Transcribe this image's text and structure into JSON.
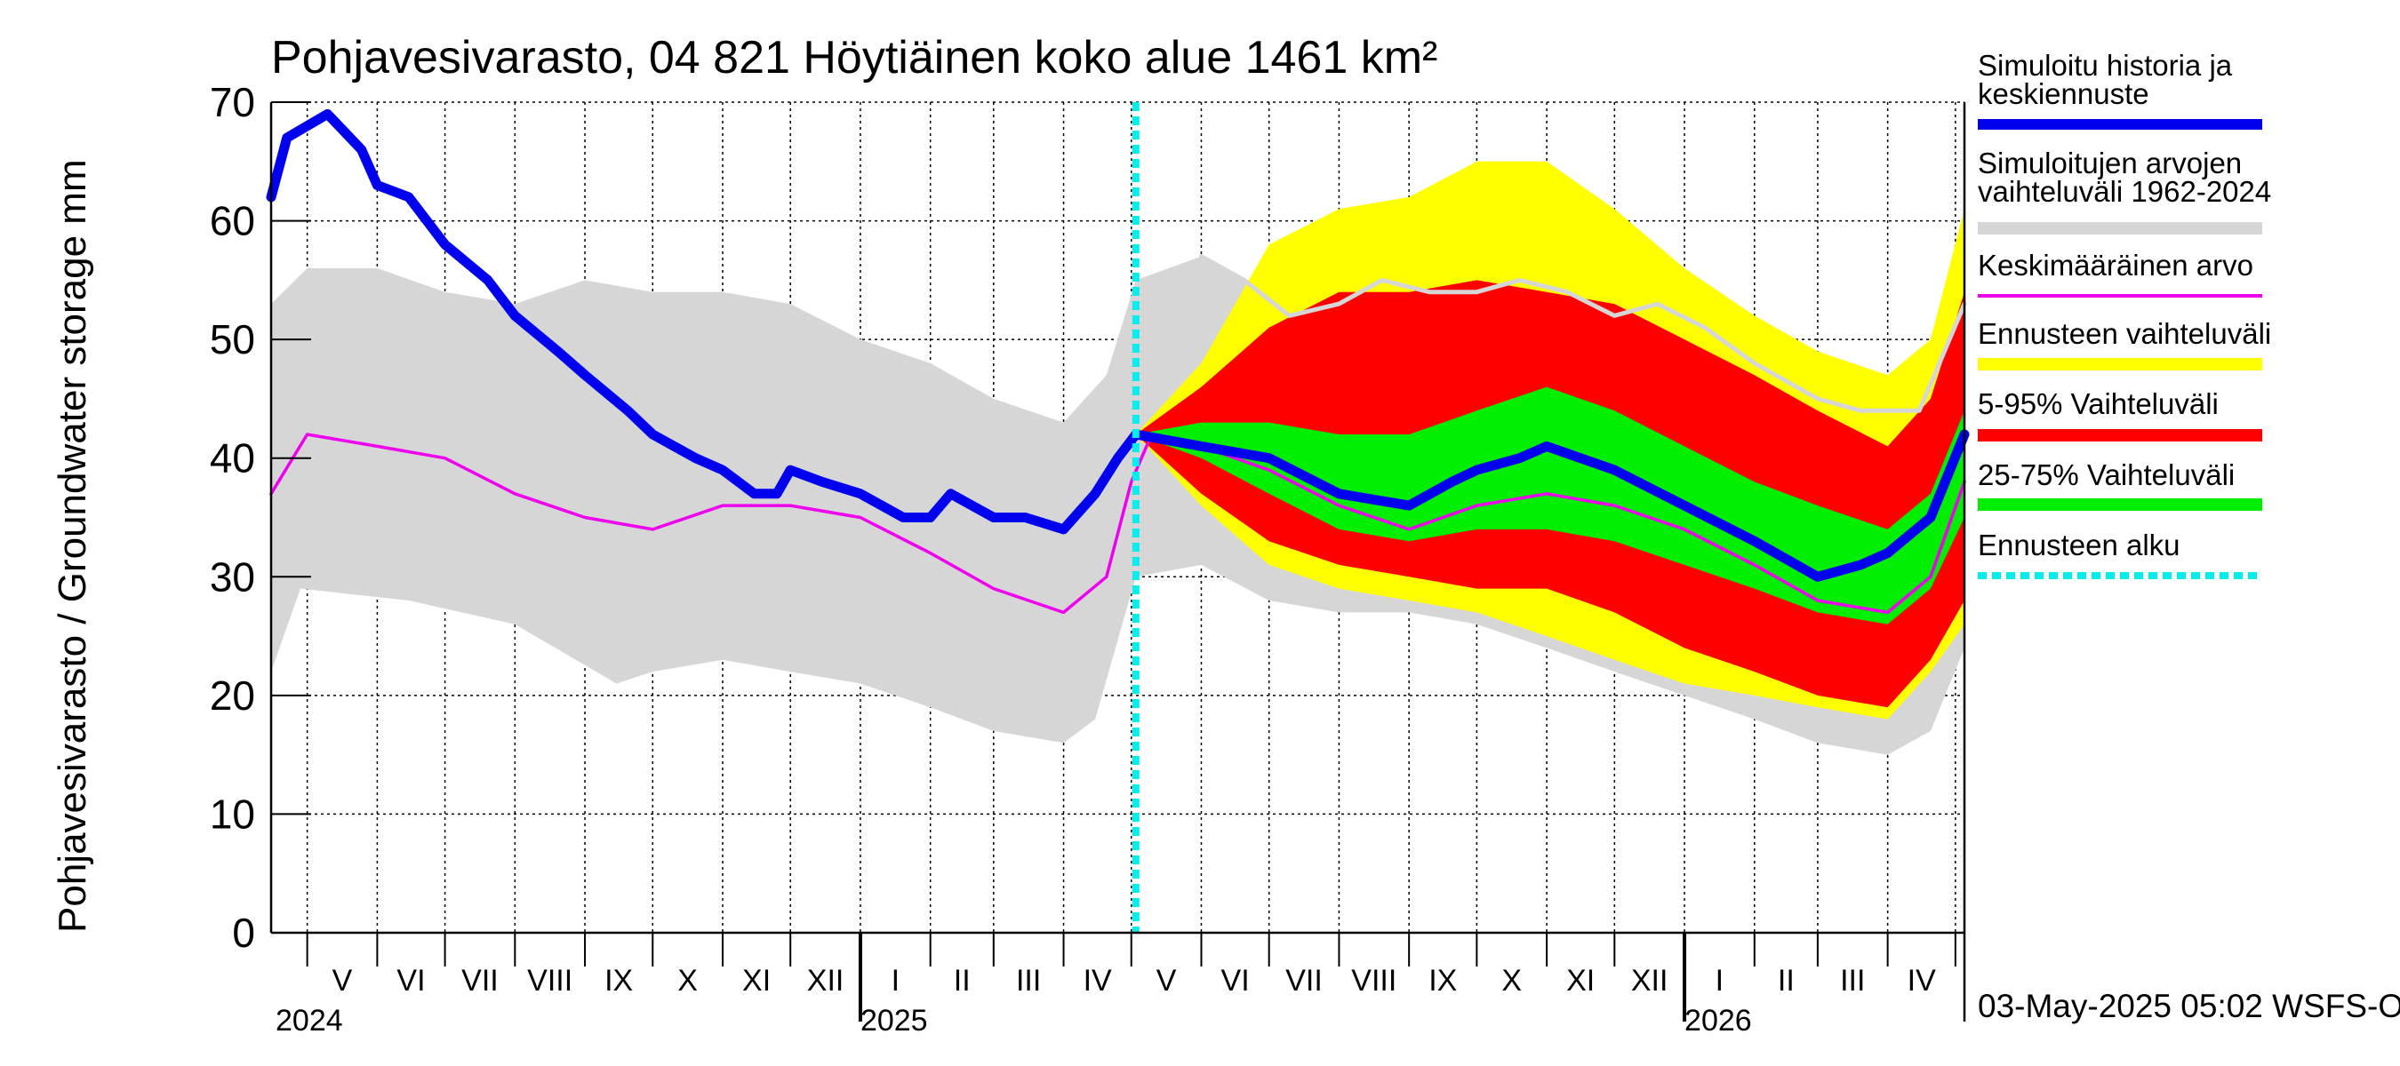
{
  "chart_data": {
    "type": "area",
    "title": "Pohjavesivarasto, 04 821 Höytiäinen koko alue 1461 km²",
    "ylabel": "Pohjavesivarasto / Groundwater storage   mm",
    "ylim": [
      0,
      70
    ],
    "yticks": [
      0,
      10,
      20,
      30,
      40,
      50,
      60,
      70
    ],
    "grid": true,
    "x_start": "2024-04-15",
    "x_end": "2026-05-05",
    "forecast_start": "2025-05-03",
    "months": [
      {
        "label": "V",
        "date": "2024-05-01"
      },
      {
        "label": "VI",
        "date": "2024-06-01"
      },
      {
        "label": "VII",
        "date": "2024-07-01"
      },
      {
        "label": "VIII",
        "date": "2024-08-01"
      },
      {
        "label": "IX",
        "date": "2024-09-01"
      },
      {
        "label": "X",
        "date": "2024-10-01"
      },
      {
        "label": "XI",
        "date": "2024-11-01"
      },
      {
        "label": "XII",
        "date": "2024-12-01"
      },
      {
        "label": "I",
        "date": "2025-01-01"
      },
      {
        "label": "II",
        "date": "2025-02-01"
      },
      {
        "label": "III",
        "date": "2025-03-01"
      },
      {
        "label": "IV",
        "date": "2025-04-01"
      },
      {
        "label": "V",
        "date": "2025-05-01"
      },
      {
        "label": "VI",
        "date": "2025-06-01"
      },
      {
        "label": "VII",
        "date": "2025-07-01"
      },
      {
        "label": "VIII",
        "date": "2025-08-01"
      },
      {
        "label": "IX",
        "date": "2025-09-01"
      },
      {
        "label": "X",
        "date": "2025-10-01"
      },
      {
        "label": "XI",
        "date": "2025-11-01"
      },
      {
        "label": "XII",
        "date": "2025-12-01"
      },
      {
        "label": "I",
        "date": "2026-01-01"
      },
      {
        "label": "II",
        "date": "2026-02-01"
      },
      {
        "label": "III",
        "date": "2026-03-01"
      },
      {
        "label": "IV",
        "date": "2026-04-01"
      },
      {
        "label": "",
        "date": "2026-05-01"
      }
    ],
    "years": [
      {
        "label": "2024",
        "date": "2024-04-15"
      },
      {
        "label": "2025",
        "date": "2025-01-01"
      },
      {
        "label": "2026",
        "date": "2026-01-01"
      }
    ],
    "colors": {
      "history": "#0000ee",
      "range": "#d6d6d6",
      "mean": "#ee00ee",
      "forecast_range": "#ffff00",
      "p5_95": "#ff0000",
      "p25_75": "#00ee00",
      "forecast_start": "#00eeee",
      "range_max_line": "#d6d6d6"
    },
    "series": [
      {
        "key": "range",
        "name": "Simuloitujen arvojen vaihteluväli 1962-2024",
        "kind": "band",
        "lower": [
          [
            "2024-04-15",
            22
          ],
          [
            "2024-04-28",
            29
          ],
          [
            "2024-06-15",
            28
          ],
          [
            "2024-08-01",
            26
          ],
          [
            "2024-09-15",
            21
          ],
          [
            "2024-10-01",
            22
          ],
          [
            "2024-11-01",
            23
          ],
          [
            "2024-12-01",
            22
          ],
          [
            "2025-01-01",
            21
          ],
          [
            "2025-02-01",
            19
          ],
          [
            "2025-03-01",
            17
          ],
          [
            "2025-04-01",
            16
          ],
          [
            "2025-04-15",
            18
          ],
          [
            "2025-05-03",
            30
          ],
          [
            "2025-06-01",
            31
          ],
          [
            "2025-07-01",
            28
          ],
          [
            "2025-08-01",
            27
          ],
          [
            "2025-09-01",
            27
          ],
          [
            "2025-10-01",
            26
          ],
          [
            "2025-11-01",
            24
          ],
          [
            "2025-12-01",
            22
          ],
          [
            "2026-01-01",
            20
          ],
          [
            "2026-02-01",
            18
          ],
          [
            "2026-03-01",
            16
          ],
          [
            "2026-04-01",
            15
          ],
          [
            "2026-04-20",
            17
          ],
          [
            "2026-05-05",
            24
          ]
        ],
        "upper": [
          [
            "2024-04-15",
            53
          ],
          [
            "2024-05-01",
            56
          ],
          [
            "2024-06-01",
            56
          ],
          [
            "2024-07-01",
            54
          ],
          [
            "2024-08-01",
            53
          ],
          [
            "2024-09-01",
            55
          ],
          [
            "2024-10-01",
            54
          ],
          [
            "2024-11-01",
            54
          ],
          [
            "2024-12-01",
            53
          ],
          [
            "2025-01-01",
            50
          ],
          [
            "2025-02-01",
            48
          ],
          [
            "2025-03-01",
            45
          ],
          [
            "2025-04-01",
            43
          ],
          [
            "2025-04-20",
            47
          ],
          [
            "2025-05-03",
            55
          ],
          [
            "2025-06-01",
            57
          ],
          [
            "2025-07-01",
            54
          ],
          [
            "2025-08-01",
            53
          ],
          [
            "2025-09-01",
            54
          ],
          [
            "2025-10-01",
            54
          ],
          [
            "2025-11-01",
            55
          ],
          [
            "2025-12-01",
            54
          ],
          [
            "2026-01-01",
            53
          ],
          [
            "2026-02-01",
            50
          ],
          [
            "2026-03-01",
            46
          ],
          [
            "2026-04-01",
            44
          ],
          [
            "2026-04-20",
            45
          ],
          [
            "2026-05-05",
            53
          ]
        ]
      },
      {
        "key": "forecast_range",
        "name": "Ennusteen vaihteluväli",
        "kind": "band",
        "lower": [
          [
            "2025-05-03",
            42
          ],
          [
            "2025-06-01",
            36
          ],
          [
            "2025-07-01",
            31
          ],
          [
            "2025-08-01",
            29
          ],
          [
            "2025-09-01",
            28
          ],
          [
            "2025-10-01",
            27
          ],
          [
            "2025-11-01",
            25
          ],
          [
            "2025-12-01",
            23
          ],
          [
            "2026-01-01",
            21
          ],
          [
            "2026-02-01",
            20
          ],
          [
            "2026-03-01",
            19
          ],
          [
            "2026-04-01",
            18
          ],
          [
            "2026-04-20",
            22
          ],
          [
            "2026-05-05",
            26
          ]
        ],
        "upper": [
          [
            "2025-05-03",
            42
          ],
          [
            "2025-06-01",
            48
          ],
          [
            "2025-07-01",
            58
          ],
          [
            "2025-08-01",
            61
          ],
          [
            "2025-09-01",
            62
          ],
          [
            "2025-10-01",
            65
          ],
          [
            "2025-11-01",
            65
          ],
          [
            "2025-12-01",
            61
          ],
          [
            "2026-01-01",
            56
          ],
          [
            "2026-02-01",
            52
          ],
          [
            "2026-03-01",
            49
          ],
          [
            "2026-04-01",
            47
          ],
          [
            "2026-04-20",
            50
          ],
          [
            "2026-05-05",
            61
          ]
        ]
      },
      {
        "key": "p5_95",
        "name": "5-95% Vaihteluväli",
        "kind": "band",
        "lower": [
          [
            "2025-05-03",
            42
          ],
          [
            "2025-06-01",
            37
          ],
          [
            "2025-07-01",
            33
          ],
          [
            "2025-08-01",
            31
          ],
          [
            "2025-09-01",
            30
          ],
          [
            "2025-10-01",
            29
          ],
          [
            "2025-11-01",
            29
          ],
          [
            "2025-12-01",
            27
          ],
          [
            "2026-01-01",
            24
          ],
          [
            "2026-02-01",
            22
          ],
          [
            "2026-03-01",
            20
          ],
          [
            "2026-04-01",
            19
          ],
          [
            "2026-04-20",
            23
          ],
          [
            "2026-05-05",
            28
          ]
        ],
        "upper": [
          [
            "2025-05-03",
            42
          ],
          [
            "2025-06-01",
            46
          ],
          [
            "2025-07-01",
            51
          ],
          [
            "2025-08-01",
            54
          ],
          [
            "2025-09-01",
            54
          ],
          [
            "2025-10-01",
            55
          ],
          [
            "2025-11-01",
            54
          ],
          [
            "2025-12-01",
            53
          ],
          [
            "2026-01-01",
            50
          ],
          [
            "2026-02-01",
            47
          ],
          [
            "2026-03-01",
            44
          ],
          [
            "2026-04-01",
            41
          ],
          [
            "2026-04-20",
            45
          ],
          [
            "2026-05-05",
            54
          ]
        ]
      },
      {
        "key": "p25_75",
        "name": "25-75% Vaihteluväli",
        "kind": "band",
        "lower": [
          [
            "2025-05-03",
            42
          ],
          [
            "2025-06-01",
            40
          ],
          [
            "2025-07-01",
            37
          ],
          [
            "2025-08-01",
            34
          ],
          [
            "2025-09-01",
            33
          ],
          [
            "2025-10-01",
            34
          ],
          [
            "2025-11-01",
            34
          ],
          [
            "2025-12-01",
            33
          ],
          [
            "2026-01-01",
            31
          ],
          [
            "2026-02-01",
            29
          ],
          [
            "2026-03-01",
            27
          ],
          [
            "2026-04-01",
            26
          ],
          [
            "2026-04-20",
            29
          ],
          [
            "2026-05-05",
            35
          ]
        ],
        "upper": [
          [
            "2025-05-03",
            42
          ],
          [
            "2025-06-01",
            43
          ],
          [
            "2025-07-01",
            43
          ],
          [
            "2025-08-01",
            42
          ],
          [
            "2025-09-01",
            42
          ],
          [
            "2025-10-01",
            44
          ],
          [
            "2025-11-01",
            46
          ],
          [
            "2025-12-01",
            44
          ],
          [
            "2026-01-01",
            41
          ],
          [
            "2026-02-01",
            38
          ],
          [
            "2026-03-01",
            36
          ],
          [
            "2026-04-01",
            34
          ],
          [
            "2026-04-20",
            37
          ],
          [
            "2026-05-05",
            44
          ]
        ]
      },
      {
        "key": "range_max_line",
        "name": "",
        "kind": "line",
        "points": [
          [
            "2025-06-01",
            57
          ],
          [
            "2025-06-20",
            55
          ],
          [
            "2025-07-10",
            52
          ],
          [
            "2025-08-01",
            53
          ],
          [
            "2025-08-20",
            55
          ],
          [
            "2025-09-10",
            54
          ],
          [
            "2025-10-01",
            54
          ],
          [
            "2025-10-20",
            55
          ],
          [
            "2025-11-10",
            54
          ],
          [
            "2025-12-01",
            52
          ],
          [
            "2025-12-20",
            53
          ],
          [
            "2026-01-10",
            51
          ],
          [
            "2026-02-01",
            48
          ],
          [
            "2026-03-01",
            45
          ],
          [
            "2026-03-20",
            44
          ],
          [
            "2026-04-15",
            44
          ],
          [
            "2026-05-05",
            53
          ]
        ]
      },
      {
        "key": "mean",
        "name": "Keskimääräinen arvo",
        "kind": "line",
        "points": [
          [
            "2024-04-15",
            37
          ],
          [
            "2024-05-01",
            42
          ],
          [
            "2024-06-01",
            41
          ],
          [
            "2024-07-01",
            40
          ],
          [
            "2024-08-01",
            37
          ],
          [
            "2024-09-01",
            35
          ],
          [
            "2024-10-01",
            34
          ],
          [
            "2024-11-01",
            36
          ],
          [
            "2024-12-01",
            36
          ],
          [
            "2025-01-01",
            35
          ],
          [
            "2025-02-01",
            32
          ],
          [
            "2025-03-01",
            29
          ],
          [
            "2025-04-01",
            27
          ],
          [
            "2025-04-20",
            30
          ],
          [
            "2025-05-01",
            38
          ],
          [
            "2025-05-10",
            42
          ],
          [
            "2025-06-01",
            41
          ],
          [
            "2025-07-01",
            39
          ],
          [
            "2025-08-01",
            36
          ],
          [
            "2025-09-01",
            34
          ],
          [
            "2025-10-01",
            36
          ],
          [
            "2025-11-01",
            37
          ],
          [
            "2025-12-01",
            36
          ],
          [
            "2026-01-01",
            34
          ],
          [
            "2026-02-01",
            31
          ],
          [
            "2026-03-01",
            28
          ],
          [
            "2026-04-01",
            27
          ],
          [
            "2026-04-20",
            30
          ],
          [
            "2026-05-05",
            38
          ]
        ]
      },
      {
        "key": "history",
        "name": "Simuloitu historia ja keskiennuste",
        "kind": "line",
        "points": [
          [
            "2024-04-15",
            62
          ],
          [
            "2024-04-22",
            67
          ],
          [
            "2024-05-01",
            68
          ],
          [
            "2024-05-10",
            69
          ],
          [
            "2024-05-25",
            66
          ],
          [
            "2024-06-01",
            63
          ],
          [
            "2024-06-15",
            62
          ],
          [
            "2024-07-01",
            58
          ],
          [
            "2024-07-20",
            55
          ],
          [
            "2024-08-01",
            52
          ],
          [
            "2024-08-20",
            49
          ],
          [
            "2024-09-01",
            47
          ],
          [
            "2024-09-20",
            44
          ],
          [
            "2024-10-01",
            42
          ],
          [
            "2024-10-20",
            40
          ],
          [
            "2024-11-01",
            39
          ],
          [
            "2024-11-15",
            37
          ],
          [
            "2024-11-25",
            37
          ],
          [
            "2024-12-01",
            39
          ],
          [
            "2024-12-15",
            38
          ],
          [
            "2025-01-01",
            37
          ],
          [
            "2025-01-20",
            35
          ],
          [
            "2025-02-01",
            35
          ],
          [
            "2025-02-10",
            37
          ],
          [
            "2025-03-01",
            35
          ],
          [
            "2025-03-15",
            35
          ],
          [
            "2025-04-01",
            34
          ],
          [
            "2025-04-15",
            37
          ],
          [
            "2025-04-25",
            40
          ],
          [
            "2025-05-03",
            42
          ],
          [
            "2025-06-01",
            41
          ],
          [
            "2025-07-01",
            40
          ],
          [
            "2025-08-01",
            37
          ],
          [
            "2025-09-01",
            36
          ],
          [
            "2025-09-20",
            38
          ],
          [
            "2025-10-01",
            39
          ],
          [
            "2025-10-20",
            40
          ],
          [
            "2025-11-01",
            41
          ],
          [
            "2025-12-01",
            39
          ],
          [
            "2026-01-01",
            36
          ],
          [
            "2026-02-01",
            33
          ],
          [
            "2026-03-01",
            30
          ],
          [
            "2026-03-20",
            31
          ],
          [
            "2026-04-01",
            32
          ],
          [
            "2026-04-20",
            35
          ],
          [
            "2026-05-05",
            42
          ]
        ]
      }
    ],
    "legend": [
      {
        "label": "Simuloitu historia ja keskiennuste",
        "color": "#0000ee",
        "style": "line"
      },
      {
        "label": "Simuloitujen arvojen vaihteluväli 1962-2024",
        "color": "#d6d6d6",
        "style": "band"
      },
      {
        "label": "Keskimääräinen arvo",
        "color": "#ee00ee",
        "style": "thin"
      },
      {
        "label": "Ennusteen vaihteluväli",
        "color": "#ffff00",
        "style": "band"
      },
      {
        "label": "5-95% Vaihteluväli",
        "color": "#ff0000",
        "style": "band"
      },
      {
        "label": "25-75% Vaihteluväli",
        "color": "#00ee00",
        "style": "band"
      },
      {
        "label": "Ennusteen alku",
        "color": "#00eeee",
        "style": "dashed"
      }
    ],
    "footer": "03-May-2025 05:02 WSFS-O",
    "legend_placement": "right"
  }
}
